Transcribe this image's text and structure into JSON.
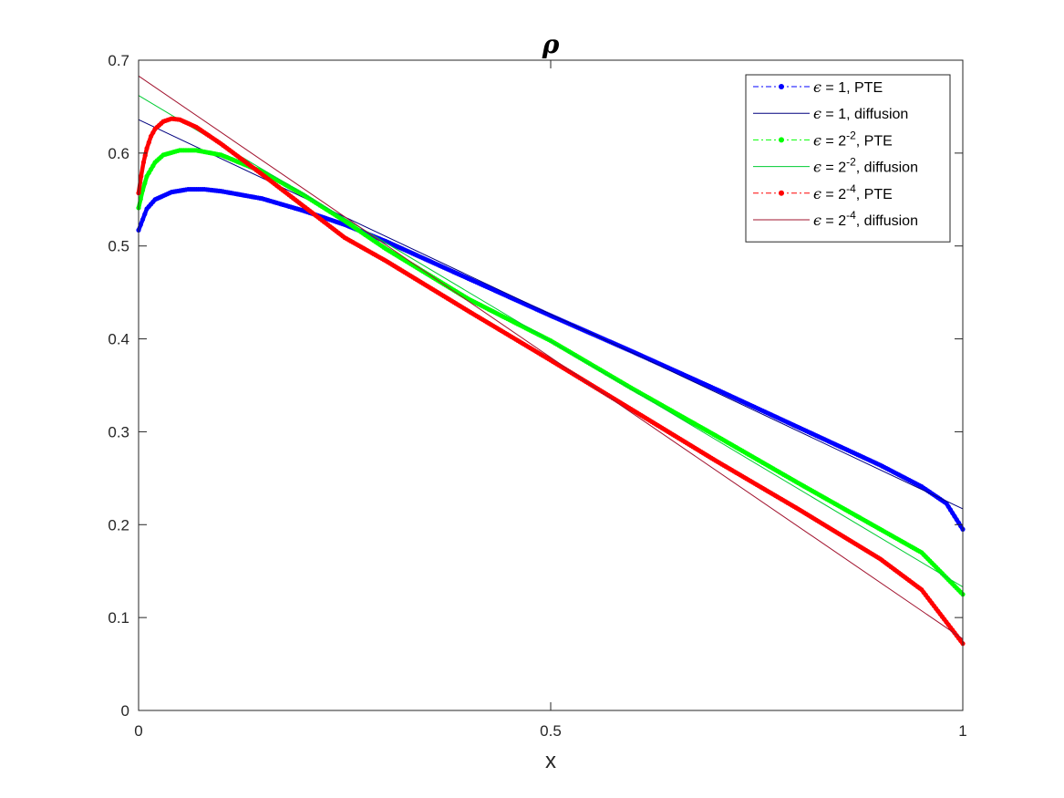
{
  "chart_data": {
    "type": "line",
    "title": "ρ",
    "xlabel": "x",
    "ylabel": "",
    "xlim": [
      0,
      1
    ],
    "ylim": [
      0,
      0.7
    ],
    "xticks": [
      "0",
      "0.5",
      "1"
    ],
    "yticks": [
      "0",
      "0.1",
      "0.2",
      "0.3",
      "0.4",
      "0.5",
      "0.6",
      "0.7"
    ],
    "grid": false,
    "legend_position": "top-right",
    "series": [
      {
        "name": "ϵ = 1, PTE",
        "legend": {
          "eps": "ϵ",
          "rest": " = 1, PTE",
          "sup": ""
        },
        "style": "marker-line",
        "color": "#0000ff",
        "x": [
          0.0,
          0.01,
          0.02,
          0.04,
          0.06,
          0.08,
          0.1,
          0.15,
          0.2,
          0.25,
          0.3,
          0.4,
          0.5,
          0.6,
          0.7,
          0.8,
          0.9,
          0.95,
          0.98,
          1.0
        ],
        "y": [
          0.517,
          0.54,
          0.55,
          0.558,
          0.561,
          0.561,
          0.559,
          0.551,
          0.538,
          0.523,
          0.505,
          0.465,
          0.425,
          0.386,
          0.346,
          0.305,
          0.264,
          0.241,
          0.223,
          0.195
        ]
      },
      {
        "name": "ϵ = 1, diffusion",
        "legend": {
          "eps": "ϵ",
          "rest": " = 1, diffusion",
          "sup": ""
        },
        "style": "thin-line",
        "color": "#00007f",
        "x": [
          0.0,
          1.0
        ],
        "y": [
          0.636,
          0.217
        ]
      },
      {
        "name": "ϵ = 2^-2, PTE",
        "legend": {
          "eps": "ϵ",
          "rest_pre": " = 2",
          "sup": "-2",
          "rest": ", PTE"
        },
        "style": "marker-line",
        "color": "#00ff00",
        "x": [
          0.0,
          0.005,
          0.01,
          0.02,
          0.03,
          0.05,
          0.07,
          0.1,
          0.15,
          0.2,
          0.25,
          0.3,
          0.4,
          0.5,
          0.6,
          0.7,
          0.8,
          0.9,
          0.95,
          1.0
        ],
        "y": [
          0.541,
          0.56,
          0.575,
          0.59,
          0.598,
          0.603,
          0.603,
          0.598,
          0.58,
          0.555,
          0.527,
          0.497,
          0.443,
          0.398,
          0.346,
          0.296,
          0.245,
          0.195,
          0.17,
          0.125
        ]
      },
      {
        "name": "ϵ = 2^-2, diffusion",
        "legend": {
          "eps": "ϵ",
          "rest_pre": " = 2",
          "sup": "-2",
          "rest": ", diffusion"
        },
        "style": "thin-line",
        "color": "#00cc33",
        "x": [
          0.0,
          1.0
        ],
        "y": [
          0.662,
          0.133
        ]
      },
      {
        "name": "ϵ = 2^-4, PTE",
        "legend": {
          "eps": "ϵ",
          "rest_pre": " = 2",
          "sup": "-4",
          "rest": ", PTE"
        },
        "style": "marker-line",
        "color": "#ff0000",
        "x": [
          0.0,
          0.003,
          0.006,
          0.01,
          0.015,
          0.02,
          0.03,
          0.04,
          0.05,
          0.07,
          0.1,
          0.15,
          0.2,
          0.25,
          0.3,
          0.4,
          0.5,
          0.6,
          0.7,
          0.8,
          0.9,
          0.95,
          1.0
        ],
        "y": [
          0.557,
          0.575,
          0.59,
          0.605,
          0.618,
          0.626,
          0.634,
          0.637,
          0.636,
          0.628,
          0.61,
          0.577,
          0.543,
          0.509,
          0.484,
          0.43,
          0.377,
          0.323,
          0.269,
          0.217,
          0.163,
          0.13,
          0.072
        ]
      },
      {
        "name": "ϵ = 2^-4, diffusion",
        "legend": {
          "eps": "ϵ",
          "rest_pre": " = 2",
          "sup": "-4",
          "rest": ", diffusion"
        },
        "style": "thin-line",
        "color": "#a2142f",
        "x": [
          0.0,
          1.0
        ],
        "y": [
          0.683,
          0.077
        ]
      }
    ]
  }
}
